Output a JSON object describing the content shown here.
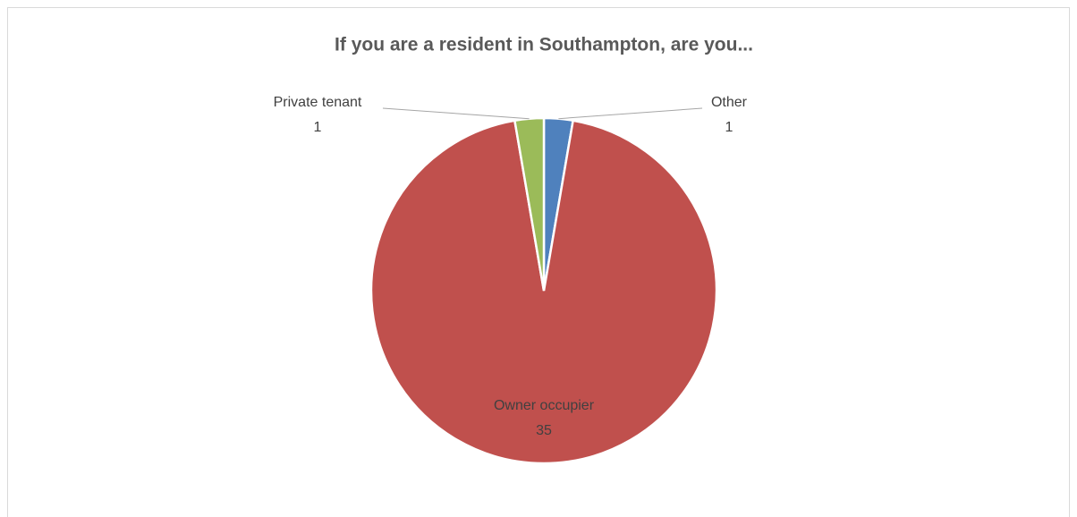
{
  "chart_data": {
    "type": "pie",
    "title": "If you are a resident in Southampton, are you...",
    "categories": [
      "Other",
      "Owner occupier",
      "Private tenant"
    ],
    "values": [
      1,
      35,
      1
    ],
    "colors": [
      "#4f81bd",
      "#c0504d",
      "#9bbb59"
    ]
  }
}
